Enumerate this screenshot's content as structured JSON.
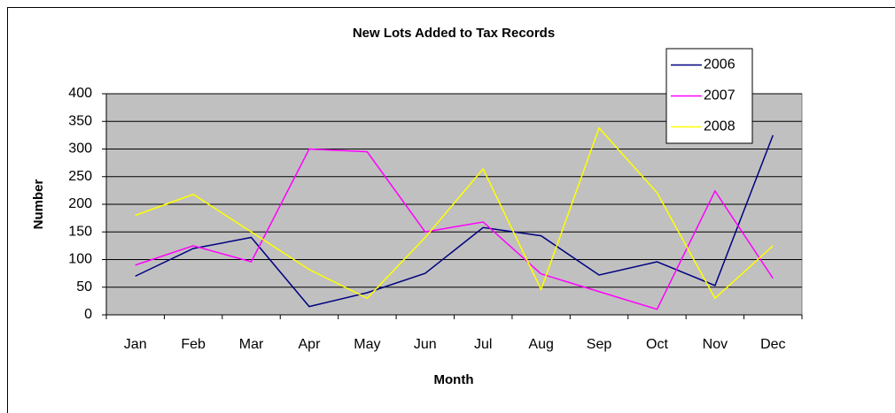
{
  "chart_data": {
    "type": "line",
    "title": "New Lots Added to Tax Records",
    "x_label": "Month",
    "y_label": "Number",
    "categories": [
      "Jan",
      "Feb",
      "Mar",
      "Apr",
      "May",
      "Jun",
      "Jul",
      "Aug",
      "Sep",
      "Oct",
      "Nov",
      "Dec"
    ],
    "series": [
      {
        "name": "2006",
        "color": "#000080",
        "values": [
          70,
          120,
          140,
          15,
          40,
          75,
          158,
          143,
          72,
          96,
          53,
          325
        ]
      },
      {
        "name": "2007",
        "color": "#ff00ff",
        "values": [
          90,
          125,
          96,
          300,
          295,
          150,
          168,
          74,
          42,
          10,
          224,
          66
        ]
      },
      {
        "name": "2008",
        "color": "#ffff00",
        "values": [
          180,
          218,
          150,
          82,
          30,
          140,
          264,
          46,
          338,
          221,
          30,
          125
        ]
      }
    ],
    "ylim": [
      0,
      400
    ],
    "yticks": [
      0,
      50,
      100,
      150,
      200,
      250,
      300,
      350,
      400
    ],
    "grid": true,
    "legend": "top-right",
    "plot_background": "#c0c0c0"
  }
}
